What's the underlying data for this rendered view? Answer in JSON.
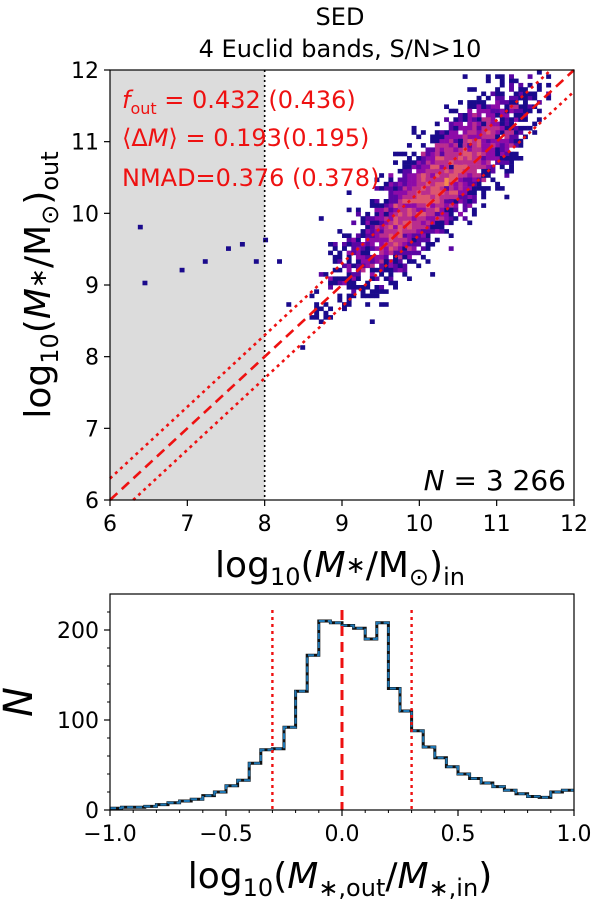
{
  "chart_data": [
    {
      "type": "heatmap",
      "title_lines": [
        "SED",
        "4 Euclid bands, S/N>10"
      ],
      "xlabel": "log₁₀(M∗/M⊙)in",
      "ylabel": "log₁₀(M∗/M⊙)out",
      "xlim": [
        6,
        12
      ],
      "ylim": [
        6,
        12
      ],
      "xticks": [
        6,
        7,
        8,
        9,
        10,
        11,
        12
      ],
      "yticks": [
        6,
        7,
        8,
        9,
        10,
        11,
        12
      ],
      "shaded_region": {
        "x_from": 6,
        "x_to": 8,
        "color": "#dcdcdc"
      },
      "vertical_line": {
        "x": 8,
        "style": "dotted",
        "color": "#000000"
      },
      "one_to_one": {
        "offset": 0,
        "style": "dashed",
        "color": "#ee1111"
      },
      "scatter_band": {
        "offset": 0.3,
        "style": "dotted",
        "color": "#ee1111"
      },
      "annotations": [
        {
          "text": "f_out = 0.432 (0.436)",
          "color": "#ee1111"
        },
        {
          "text": "⟨ΔM⟩ = 0.193(0.195)",
          "color": "#ee1111"
        },
        {
          "text": "NMAD=0.376 (0.378)",
          "color": "#ee1111"
        }
      ],
      "count_label": "N = 3 266",
      "colormap": [
        "#1a0a8c",
        "#5a06a4",
        "#8d0ba8",
        "#b92d8e",
        "#dd5670",
        "#f48a4d"
      ],
      "outliers": [
        [
          6.4,
          9.8
        ],
        [
          6.45,
          9.05
        ],
        [
          6.9,
          9.2
        ],
        [
          7.2,
          9.3
        ],
        [
          7.5,
          9.5
        ],
        [
          7.7,
          9.55
        ],
        [
          7.9,
          9.35
        ],
        [
          8.0,
          9.6
        ],
        [
          8.2,
          9.3
        ],
        [
          8.3,
          8.7
        ],
        [
          8.5,
          8.1
        ],
        [
          8.7,
          9.9
        ]
      ]
    },
    {
      "type": "bar",
      "xlabel": "log₁₀(M∗,out/M∗,in)",
      "ylabel": "N",
      "xlim": [
        -1.0,
        1.0
      ],
      "ylim": [
        0,
        240
      ],
      "xticks": [
        -1.0,
        -0.5,
        0.0,
        0.5,
        1.0
      ],
      "yticks": [
        0,
        100,
        200
      ],
      "bin_width": 0.05,
      "bin_edges_start": -1.0,
      "counts": [
        2,
        3,
        3,
        4,
        6,
        8,
        10,
        12,
        16,
        20,
        27,
        33,
        52,
        67,
        68,
        92,
        132,
        172,
        210,
        208,
        205,
        202,
        190,
        208,
        135,
        110,
        88,
        70,
        58,
        48,
        40,
        35,
        30,
        26,
        22,
        18,
        15,
        14,
        20,
        22
      ],
      "vlines": [
        {
          "x": -0.3,
          "style": "dotted",
          "color": "#ee1111"
        },
        {
          "x": 0.0,
          "style": "dashed",
          "color": "#ee1111"
        },
        {
          "x": 0.3,
          "style": "dotted",
          "color": "#ee1111"
        }
      ],
      "step_color": "#1f77b4"
    }
  ]
}
